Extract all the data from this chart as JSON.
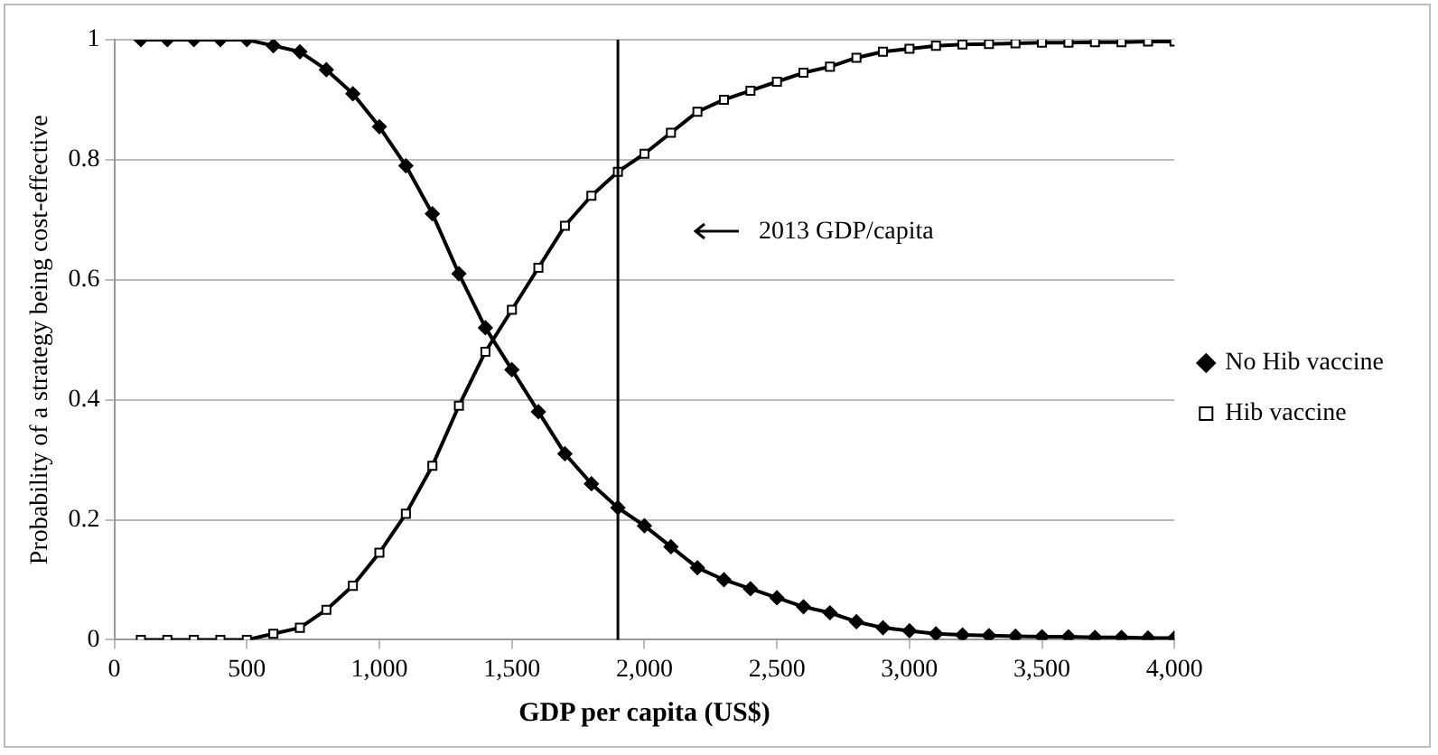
{
  "chart_data": {
    "type": "line",
    "xlabel": "GDP per capita (US$)",
    "ylabel": "Probability of a strategy being cost-effective",
    "x": [
      100,
      200,
      300,
      400,
      500,
      600,
      700,
      800,
      900,
      1000,
      1100,
      1200,
      1300,
      1400,
      1500,
      1600,
      1700,
      1800,
      1900,
      2000,
      2100,
      2200,
      2300,
      2400,
      2500,
      2600,
      2700,
      2800,
      2900,
      3000,
      3100,
      3200,
      3300,
      3400,
      3500,
      3600,
      3700,
      3800,
      3900,
      4000
    ],
    "series": [
      {
        "name": "No Hib vaccine",
        "color": "#000000",
        "marker": "diamond",
        "values": [
          1,
          1,
          1,
          1,
          1,
          0.99,
          0.98,
          0.95,
          0.91,
          0.855,
          0.79,
          0.71,
          0.61,
          0.52,
          0.45,
          0.38,
          0.31,
          0.26,
          0.22,
          0.19,
          0.155,
          0.12,
          0.1,
          0.085,
          0.07,
          0.055,
          0.045,
          0.03,
          0.02,
          0.015,
          0.01,
          0.008,
          0.007,
          0.006,
          0.005,
          0.005,
          0.004,
          0.004,
          0.003,
          0.003
        ]
      },
      {
        "name": "Hib vaccine",
        "color": "#000000",
        "marker": "square",
        "values": [
          0,
          0,
          0,
          0,
          0,
          0.01,
          0.02,
          0.05,
          0.09,
          0.145,
          0.21,
          0.29,
          0.39,
          0.48,
          0.55,
          0.62,
          0.69,
          0.74,
          0.78,
          0.81,
          0.845,
          0.88,
          0.9,
          0.915,
          0.93,
          0.945,
          0.955,
          0.97,
          0.98,
          0.985,
          0.99,
          0.992,
          0.993,
          0.994,
          0.995,
          0.995,
          0.996,
          0.996,
          0.997,
          0.997
        ]
      }
    ],
    "xlim": [
      0,
      4000
    ],
    "xticks": [
      0,
      500,
      {
        "value": 1000,
        "label": "1,000"
      },
      {
        "value": 1500,
        "label": "1,500"
      },
      {
        "value": 2000,
        "label": "2,000"
      },
      {
        "value": 2500,
        "label": "2,500"
      },
      {
        "value": 3000,
        "label": "3,000"
      },
      {
        "value": 3500,
        "label": "3,500"
      },
      {
        "value": 4000,
        "label": "4,000"
      }
    ],
    "ylim": [
      0,
      1
    ],
    "yticks": [
      0,
      0.2,
      0.4,
      0.6,
      0.8,
      1
    ],
    "ref_lines": [
      {
        "axis": "x",
        "value": 1900,
        "color": "#000000"
      }
    ],
    "annotations": [
      "2013 GDP/capita"
    ],
    "grid": "y",
    "legend": "right"
  }
}
